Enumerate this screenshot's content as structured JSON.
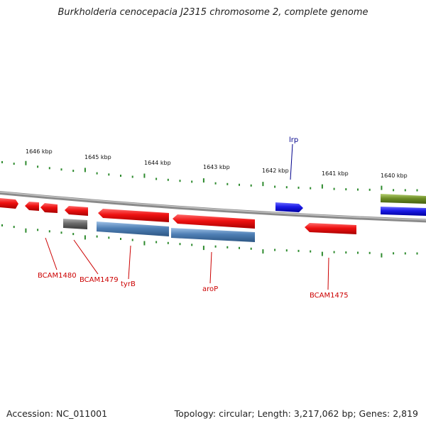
{
  "title": "Burkholderia cenocepacia J2315 chromosome 2, complete genome",
  "tick_labels": [
    "1646 kbp",
    "1645 kbp",
    "1644 kbp",
    "1643 kbp",
    "1642 kbp",
    "1641 kbp",
    "1640 kbp"
  ],
  "gene_labels": {
    "lrp": "lrp",
    "bcam1480": "BCAM1480",
    "bcam1479": "BCAM1479",
    "tyrB": "tyrB",
    "aroP": "aroP",
    "bcam1475": "BCAM1475"
  },
  "colors": {
    "forward_gene": "#ee1111",
    "reverse_gene": "#ee1111",
    "reg_gene": "#1a1ae6",
    "rna_gene": "#4f7fb5",
    "pseudo_gene": "#6a6a6a",
    "misc_gene": "#6f8f28",
    "tick": "#2e8b2e",
    "label_red": "#cc0000",
    "label_blue": "#00008b"
  },
  "footer": {
    "accession": "Accession: NC_011001",
    "stats": "Topology: circular; Length: 3,217,062 bp; Genes: 2,819"
  }
}
